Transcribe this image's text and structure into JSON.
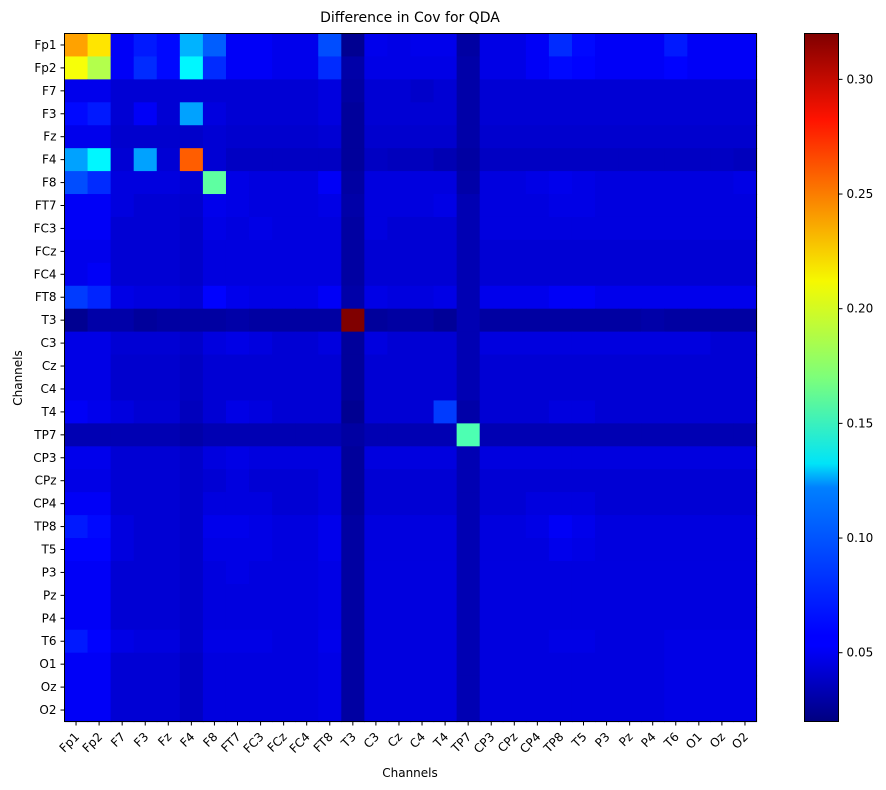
{
  "chart_data": {
    "type": "heatmap",
    "title": "Difference in Cov for QDA",
    "xlabel": "Channels",
    "ylabel": "Channels",
    "colormap": "jet",
    "vmin": 0.02,
    "vmax": 0.32,
    "colorbar_ticks": [
      0.05,
      0.1,
      0.15,
      0.2,
      0.25,
      0.3
    ],
    "colorbar_tick_labels": [
      "0.05",
      "0.10",
      "0.15",
      "0.20",
      "0.25",
      "0.30"
    ],
    "rows": [
      "Fp1",
      "Fp2",
      "F7",
      "F3",
      "Fz",
      "F4",
      "F8",
      "FT7",
      "FC3",
      "FCz",
      "FC4",
      "FT8",
      "T3",
      "C3",
      "Cz",
      "C4",
      "T4",
      "TP7",
      "CP3",
      "CPz",
      "CP4",
      "TP8",
      "T5",
      "P3",
      "Pz",
      "P4",
      "T6",
      "O1",
      "Oz",
      "O2"
    ],
    "columns": [
      "Fp1",
      "Fp2",
      "F7",
      "F3",
      "Fz",
      "F4",
      "F8",
      "FT7",
      "FC3",
      "FCz",
      "FC4",
      "FT8",
      "T3",
      "C3",
      "Cz",
      "C4",
      "T4",
      "TP7",
      "CP3",
      "CPz",
      "CP4",
      "TP8",
      "T5",
      "P3",
      "Pz",
      "P4",
      "T6",
      "O1",
      "Oz",
      "O2"
    ],
    "values": [
      [
        0.235,
        0.215,
        0.055,
        0.065,
        0.06,
        0.11,
        0.085,
        0.055,
        0.055,
        0.052,
        0.052,
        0.08,
        0.025,
        0.052,
        0.05,
        0.052,
        0.052,
        0.03,
        0.05,
        0.05,
        0.055,
        0.07,
        0.06,
        0.055,
        0.055,
        0.055,
        0.065,
        0.055,
        0.055,
        0.055
      ],
      [
        0.205,
        0.185,
        0.055,
        0.07,
        0.06,
        0.13,
        0.07,
        0.055,
        0.055,
        0.052,
        0.052,
        0.07,
        0.032,
        0.05,
        0.05,
        0.05,
        0.05,
        0.032,
        0.05,
        0.05,
        0.055,
        0.06,
        0.058,
        0.055,
        0.055,
        0.055,
        0.058,
        0.055,
        0.055,
        0.055
      ],
      [
        0.052,
        0.052,
        0.045,
        0.045,
        0.045,
        0.045,
        0.045,
        0.045,
        0.045,
        0.045,
        0.045,
        0.048,
        0.03,
        0.045,
        0.045,
        0.042,
        0.045,
        0.032,
        0.045,
        0.045,
        0.045,
        0.045,
        0.045,
        0.045,
        0.045,
        0.045,
        0.045,
        0.045,
        0.045,
        0.045
      ],
      [
        0.06,
        0.065,
        0.045,
        0.055,
        0.045,
        0.105,
        0.048,
        0.045,
        0.045,
        0.045,
        0.045,
        0.048,
        0.028,
        0.045,
        0.045,
        0.045,
        0.045,
        0.032,
        0.045,
        0.045,
        0.045,
        0.045,
        0.045,
        0.045,
        0.045,
        0.045,
        0.045,
        0.045,
        0.045,
        0.045
      ],
      [
        0.052,
        0.052,
        0.043,
        0.043,
        0.043,
        0.042,
        0.045,
        0.043,
        0.043,
        0.043,
        0.043,
        0.045,
        0.028,
        0.043,
        0.043,
        0.043,
        0.043,
        0.032,
        0.043,
        0.043,
        0.043,
        0.043,
        0.043,
        0.043,
        0.043,
        0.043,
        0.043,
        0.043,
        0.043,
        0.043
      ],
      [
        0.105,
        0.13,
        0.045,
        0.105,
        0.045,
        0.255,
        0.045,
        0.04,
        0.04,
        0.04,
        0.04,
        0.04,
        0.028,
        0.04,
        0.038,
        0.038,
        0.035,
        0.03,
        0.04,
        0.04,
        0.04,
        0.04,
        0.04,
        0.04,
        0.04,
        0.04,
        0.04,
        0.04,
        0.04,
        0.038
      ],
      [
        0.08,
        0.07,
        0.048,
        0.048,
        0.048,
        0.045,
        0.16,
        0.05,
        0.048,
        0.048,
        0.048,
        0.055,
        0.03,
        0.048,
        0.048,
        0.048,
        0.048,
        0.032,
        0.048,
        0.048,
        0.05,
        0.052,
        0.05,
        0.048,
        0.048,
        0.048,
        0.048,
        0.048,
        0.048,
        0.05
      ],
      [
        0.055,
        0.055,
        0.048,
        0.045,
        0.045,
        0.043,
        0.052,
        0.05,
        0.048,
        0.048,
        0.048,
        0.05,
        0.032,
        0.048,
        0.048,
        0.048,
        0.05,
        0.035,
        0.048,
        0.048,
        0.048,
        0.05,
        0.05,
        0.048,
        0.048,
        0.048,
        0.048,
        0.048,
        0.048,
        0.048
      ],
      [
        0.055,
        0.055,
        0.045,
        0.045,
        0.045,
        0.042,
        0.05,
        0.048,
        0.05,
        0.048,
        0.048,
        0.048,
        0.03,
        0.048,
        0.045,
        0.045,
        0.045,
        0.035,
        0.048,
        0.048,
        0.048,
        0.048,
        0.048,
        0.048,
        0.048,
        0.048,
        0.048,
        0.048,
        0.048,
        0.048
      ],
      [
        0.052,
        0.052,
        0.045,
        0.045,
        0.045,
        0.042,
        0.048,
        0.048,
        0.048,
        0.048,
        0.048,
        0.048,
        0.03,
        0.045,
        0.045,
        0.045,
        0.045,
        0.035,
        0.045,
        0.045,
        0.045,
        0.045,
        0.045,
        0.045,
        0.045,
        0.045,
        0.045,
        0.045,
        0.045,
        0.045
      ],
      [
        0.052,
        0.055,
        0.045,
        0.045,
        0.045,
        0.042,
        0.048,
        0.048,
        0.048,
        0.048,
        0.048,
        0.048,
        0.03,
        0.045,
        0.045,
        0.045,
        0.045,
        0.035,
        0.045,
        0.045,
        0.045,
        0.045,
        0.045,
        0.045,
        0.045,
        0.045,
        0.045,
        0.045,
        0.045,
        0.045
      ],
      [
        0.075,
        0.068,
        0.05,
        0.048,
        0.048,
        0.045,
        0.058,
        0.052,
        0.05,
        0.05,
        0.05,
        0.055,
        0.032,
        0.05,
        0.048,
        0.048,
        0.05,
        0.035,
        0.052,
        0.052,
        0.052,
        0.055,
        0.055,
        0.052,
        0.052,
        0.052,
        0.052,
        0.052,
        0.052,
        0.052
      ],
      [
        0.025,
        0.032,
        0.032,
        0.028,
        0.03,
        0.03,
        0.03,
        0.032,
        0.03,
        0.03,
        0.03,
        0.03,
        0.32,
        0.028,
        0.03,
        0.03,
        0.027,
        0.035,
        0.03,
        0.03,
        0.03,
        0.03,
        0.03,
        0.03,
        0.03,
        0.032,
        0.03,
        0.03,
        0.03,
        0.03
      ],
      [
        0.05,
        0.05,
        0.045,
        0.045,
        0.045,
        0.042,
        0.048,
        0.05,
        0.048,
        0.045,
        0.045,
        0.048,
        0.028,
        0.048,
        0.045,
        0.045,
        0.045,
        0.035,
        0.048,
        0.048,
        0.048,
        0.048,
        0.048,
        0.048,
        0.048,
        0.048,
        0.048,
        0.048,
        0.045,
        0.045
      ],
      [
        0.05,
        0.05,
        0.043,
        0.043,
        0.043,
        0.04,
        0.045,
        0.045,
        0.045,
        0.045,
        0.045,
        0.045,
        0.028,
        0.045,
        0.045,
        0.045,
        0.045,
        0.035,
        0.045,
        0.045,
        0.045,
        0.045,
        0.045,
        0.045,
        0.045,
        0.045,
        0.045,
        0.045,
        0.045,
        0.045
      ],
      [
        0.05,
        0.05,
        0.043,
        0.043,
        0.043,
        0.04,
        0.045,
        0.045,
        0.045,
        0.045,
        0.045,
        0.045,
        0.028,
        0.045,
        0.045,
        0.045,
        0.045,
        0.035,
        0.045,
        0.045,
        0.045,
        0.045,
        0.045,
        0.045,
        0.045,
        0.045,
        0.045,
        0.045,
        0.045,
        0.045
      ],
      [
        0.055,
        0.052,
        0.048,
        0.045,
        0.045,
        0.038,
        0.045,
        0.05,
        0.048,
        0.045,
        0.045,
        0.045,
        0.025,
        0.045,
        0.045,
        0.045,
        0.075,
        0.032,
        0.045,
        0.045,
        0.045,
        0.048,
        0.048,
        0.045,
        0.045,
        0.045,
        0.045,
        0.045,
        0.045,
        0.045
      ],
      [
        0.035,
        0.035,
        0.035,
        0.035,
        0.035,
        0.032,
        0.035,
        0.035,
        0.035,
        0.035,
        0.035,
        0.035,
        0.03,
        0.035,
        0.035,
        0.035,
        0.035,
        0.155,
        0.035,
        0.035,
        0.035,
        0.035,
        0.035,
        0.035,
        0.035,
        0.035,
        0.035,
        0.035,
        0.035,
        0.035
      ],
      [
        0.052,
        0.052,
        0.045,
        0.045,
        0.045,
        0.042,
        0.048,
        0.05,
        0.048,
        0.048,
        0.048,
        0.048,
        0.028,
        0.048,
        0.048,
        0.048,
        0.048,
        0.035,
        0.048,
        0.048,
        0.048,
        0.048,
        0.048,
        0.048,
        0.048,
        0.048,
        0.048,
        0.048,
        0.048,
        0.048
      ],
      [
        0.05,
        0.05,
        0.045,
        0.045,
        0.045,
        0.042,
        0.045,
        0.048,
        0.045,
        0.045,
        0.045,
        0.048,
        0.028,
        0.045,
        0.045,
        0.045,
        0.045,
        0.035,
        0.045,
        0.045,
        0.045,
        0.045,
        0.045,
        0.045,
        0.045,
        0.045,
        0.045,
        0.045,
        0.045,
        0.045
      ],
      [
        0.055,
        0.055,
        0.045,
        0.045,
        0.045,
        0.042,
        0.048,
        0.048,
        0.048,
        0.045,
        0.045,
        0.048,
        0.028,
        0.045,
        0.045,
        0.045,
        0.045,
        0.035,
        0.045,
        0.045,
        0.048,
        0.048,
        0.048,
        0.045,
        0.045,
        0.045,
        0.045,
        0.045,
        0.045,
        0.045
      ],
      [
        0.065,
        0.06,
        0.048,
        0.045,
        0.045,
        0.042,
        0.052,
        0.052,
        0.05,
        0.048,
        0.048,
        0.052,
        0.03,
        0.048,
        0.048,
        0.048,
        0.048,
        0.035,
        0.048,
        0.048,
        0.05,
        0.055,
        0.052,
        0.048,
        0.048,
        0.048,
        0.048,
        0.048,
        0.048,
        0.048
      ],
      [
        0.058,
        0.058,
        0.048,
        0.045,
        0.045,
        0.042,
        0.05,
        0.05,
        0.05,
        0.048,
        0.048,
        0.052,
        0.03,
        0.048,
        0.048,
        0.048,
        0.048,
        0.035,
        0.048,
        0.048,
        0.048,
        0.052,
        0.05,
        0.048,
        0.048,
        0.048,
        0.048,
        0.048,
        0.048,
        0.048
      ],
      [
        0.055,
        0.055,
        0.045,
        0.045,
        0.045,
        0.042,
        0.048,
        0.05,
        0.048,
        0.048,
        0.048,
        0.05,
        0.03,
        0.048,
        0.048,
        0.048,
        0.048,
        0.035,
        0.048,
        0.048,
        0.048,
        0.048,
        0.048,
        0.048,
        0.048,
        0.048,
        0.048,
        0.048,
        0.048,
        0.048
      ],
      [
        0.055,
        0.055,
        0.045,
        0.045,
        0.045,
        0.042,
        0.048,
        0.048,
        0.048,
        0.048,
        0.048,
        0.05,
        0.03,
        0.048,
        0.048,
        0.048,
        0.048,
        0.035,
        0.048,
        0.048,
        0.048,
        0.048,
        0.048,
        0.048,
        0.048,
        0.048,
        0.048,
        0.048,
        0.048,
        0.048
      ],
      [
        0.055,
        0.055,
        0.045,
        0.045,
        0.045,
        0.042,
        0.048,
        0.048,
        0.048,
        0.048,
        0.048,
        0.05,
        0.03,
        0.048,
        0.048,
        0.048,
        0.048,
        0.035,
        0.048,
        0.048,
        0.048,
        0.048,
        0.048,
        0.048,
        0.048,
        0.048,
        0.048,
        0.048,
        0.048,
        0.048
      ],
      [
        0.065,
        0.058,
        0.05,
        0.048,
        0.048,
        0.042,
        0.05,
        0.05,
        0.05,
        0.048,
        0.048,
        0.052,
        0.03,
        0.048,
        0.048,
        0.048,
        0.048,
        0.035,
        0.048,
        0.048,
        0.048,
        0.05,
        0.05,
        0.048,
        0.048,
        0.048,
        0.05,
        0.05,
        0.05,
        0.05
      ],
      [
        0.055,
        0.055,
        0.045,
        0.045,
        0.045,
        0.04,
        0.048,
        0.048,
        0.048,
        0.048,
        0.048,
        0.05,
        0.03,
        0.048,
        0.048,
        0.048,
        0.048,
        0.035,
        0.048,
        0.048,
        0.048,
        0.048,
        0.048,
        0.048,
        0.048,
        0.048,
        0.05,
        0.05,
        0.05,
        0.05
      ],
      [
        0.055,
        0.055,
        0.045,
        0.045,
        0.045,
        0.04,
        0.048,
        0.048,
        0.048,
        0.048,
        0.048,
        0.05,
        0.03,
        0.048,
        0.048,
        0.048,
        0.048,
        0.035,
        0.048,
        0.048,
        0.048,
        0.048,
        0.048,
        0.048,
        0.048,
        0.048,
        0.05,
        0.05,
        0.05,
        0.05
      ],
      [
        0.055,
        0.055,
        0.045,
        0.045,
        0.045,
        0.04,
        0.048,
        0.048,
        0.048,
        0.048,
        0.048,
        0.05,
        0.03,
        0.048,
        0.048,
        0.048,
        0.048,
        0.035,
        0.048,
        0.048,
        0.048,
        0.048,
        0.048,
        0.048,
        0.048,
        0.048,
        0.05,
        0.05,
        0.05,
        0.05
      ]
    ]
  }
}
